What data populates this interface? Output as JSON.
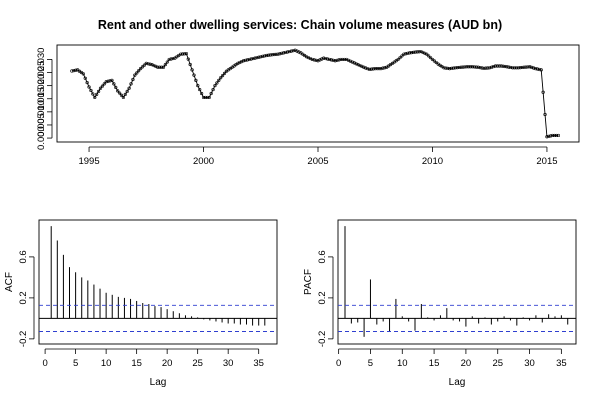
{
  "chart_data": [
    {
      "type": "line",
      "title": "Rent and other dwelling services: Chain volume measures (AUD bn)",
      "xlabel": "",
      "ylabel": "",
      "xlim": [
        1993.6,
        2016.4
      ],
      "ylim": [
        -0.0015,
        0.0355
      ],
      "xticks": [
        1995,
        2000,
        2005,
        2010,
        2015
      ],
      "yticks": [
        0.0,
        0.005,
        0.01,
        0.015,
        0.02,
        0.025,
        0.03
      ],
      "ytick_labels": [
        "0.000",
        "0.005",
        "0.010",
        "0.015",
        "0.020",
        "0.025",
        "0.030"
      ],
      "marker": "point",
      "grid": false,
      "series": [
        {
          "x": [
            1994.25,
            1994.5,
            1994.75,
            1995.0,
            1995.25,
            1995.5,
            1995.75,
            1996.0,
            1996.25,
            1996.5,
            1996.75,
            1997.0,
            1997.25,
            1997.5,
            1997.75,
            1998.0,
            1998.25,
            1998.5,
            1998.75,
            1999.0,
            1999.25,
            1999.5,
            1999.75,
            2000.0,
            2000.25,
            2000.5,
            2000.75,
            2001.0,
            2001.25,
            2001.5,
            2001.75,
            2002.0,
            2002.25,
            2002.5,
            2002.75,
            2003.0,
            2003.25,
            2003.5,
            2003.75,
            2004.0,
            2004.25,
            2004.5,
            2004.75,
            2005.0,
            2005.25,
            2005.5,
            2005.75,
            2006.0,
            2006.25,
            2006.5,
            2006.75,
            2007.0,
            2007.25,
            2007.5,
            2007.75,
            2008.0,
            2008.25,
            2008.5,
            2008.75,
            2009.0,
            2009.25,
            2009.5,
            2009.75,
            2010.0,
            2010.25,
            2010.5,
            2010.75,
            2011.0,
            2011.25,
            2011.5,
            2011.75,
            2012.0,
            2012.25,
            2012.5,
            2012.75,
            2013.0,
            2013.25,
            2013.5,
            2013.75,
            2014.0,
            2014.25,
            2014.5,
            2014.75,
            2015.0,
            2015.25,
            2015.5
          ],
          "y": [
            0.0256,
            0.026,
            0.0245,
            0.0195,
            0.0155,
            0.019,
            0.0215,
            0.022,
            0.018,
            0.0155,
            0.019,
            0.024,
            0.0265,
            0.0285,
            0.028,
            0.027,
            0.027,
            0.03,
            0.0305,
            0.032,
            0.0322,
            0.026,
            0.02,
            0.0155,
            0.0155,
            0.02,
            0.023,
            0.0255,
            0.027,
            0.0285,
            0.0295,
            0.03,
            0.0305,
            0.031,
            0.0315,
            0.0318,
            0.032,
            0.0325,
            0.033,
            0.0335,
            0.0325,
            0.031,
            0.03,
            0.0295,
            0.0305,
            0.03,
            0.0295,
            0.03,
            0.03,
            0.029,
            0.028,
            0.027,
            0.0262,
            0.0265,
            0.0265,
            0.027,
            0.0285,
            0.03,
            0.032,
            0.0325,
            0.0328,
            0.033,
            0.032,
            0.03,
            0.0282,
            0.0268,
            0.0265,
            0.0268,
            0.027,
            0.0272,
            0.0272,
            0.027,
            0.0266,
            0.0268,
            0.0275,
            0.0275,
            0.0272,
            0.0268,
            0.0268,
            0.027,
            0.0272,
            0.0265,
            0.026,
            0.0005,
            0.001,
            0.001
          ]
        }
      ]
    },
    {
      "type": "bar",
      "title": "",
      "xlabel": "Lag",
      "ylabel": "ACF",
      "xlim": [
        -1,
        38
      ],
      "ylim": [
        -0.25,
        0.96
      ],
      "xticks": [
        0,
        5,
        10,
        15,
        20,
        25,
        30,
        35
      ],
      "yticks": [
        -0.2,
        0.2,
        0.6
      ],
      "ytick_labels": [
        "-0.2",
        "0.2",
        "0.6"
      ],
      "confidence_band": 0.128,
      "lags": [
        1,
        2,
        3,
        4,
        5,
        6,
        7,
        8,
        9,
        10,
        11,
        12,
        13,
        14,
        15,
        16,
        17,
        18,
        19,
        20,
        21,
        22,
        23,
        24,
        25,
        26,
        27,
        28,
        29,
        30,
        31,
        32,
        33,
        34,
        35,
        36
      ],
      "values": [
        0.9,
        0.76,
        0.62,
        0.5,
        0.45,
        0.4,
        0.37,
        0.33,
        0.29,
        0.25,
        0.23,
        0.21,
        0.2,
        0.19,
        0.17,
        0.15,
        0.14,
        0.12,
        0.11,
        0.09,
        0.07,
        0.05,
        0.03,
        0.02,
        0.01,
        -0.01,
        -0.02,
        -0.03,
        -0.04,
        -0.05,
        -0.05,
        -0.06,
        -0.06,
        -0.07,
        -0.07,
        -0.07
      ]
    },
    {
      "type": "bar",
      "title": "",
      "xlabel": "Lag",
      "ylabel": "PACF",
      "xlim": [
        -0.1,
        37.3
      ],
      "ylim": [
        -0.25,
        0.96
      ],
      "xticks": [
        0,
        5,
        10,
        15,
        20,
        25,
        30,
        35
      ],
      "yticks": [
        -0.2,
        0.2,
        0.6
      ],
      "ytick_labels": [
        "-0.2",
        "0.2",
        "0.6"
      ],
      "confidence_band": 0.128,
      "lags": [
        1,
        2,
        3,
        4,
        5,
        6,
        7,
        8,
        9,
        10,
        11,
        12,
        13,
        14,
        15,
        16,
        17,
        18,
        19,
        20,
        21,
        22,
        23,
        24,
        25,
        26,
        27,
        28,
        29,
        30,
        31,
        32,
        33,
        34,
        35,
        36
      ],
      "values": [
        0.9,
        -0.05,
        -0.04,
        -0.18,
        0.38,
        -0.06,
        -0.03,
        -0.13,
        0.19,
        0.02,
        -0.03,
        -0.12,
        0.14,
        0.01,
        -0.02,
        0.03,
        0.1,
        -0.02,
        -0.03,
        -0.08,
        0.02,
        -0.05,
        0.01,
        -0.06,
        -0.03,
        0.02,
        -0.02,
        -0.07,
        0.01,
        -0.02,
        0.03,
        -0.04,
        0.04,
        0.02,
        0.03,
        -0.06
      ]
    }
  ]
}
